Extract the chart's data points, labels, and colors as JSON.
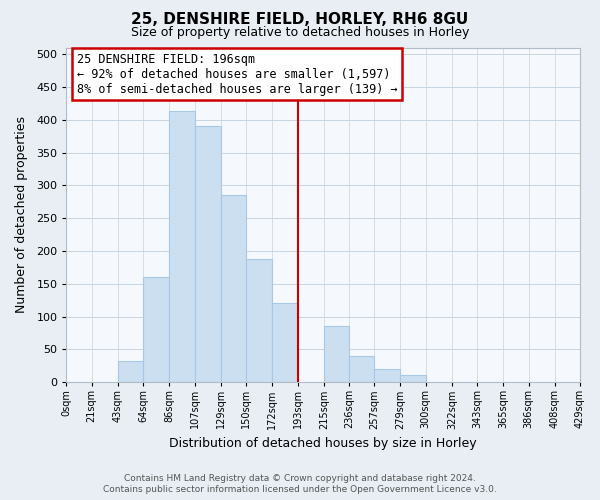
{
  "title": "25, DENSHIRE FIELD, HORLEY, RH6 8GU",
  "subtitle": "Size of property relative to detached houses in Horley",
  "xlabel": "Distribution of detached houses by size in Horley",
  "ylabel": "Number of detached properties",
  "bin_edges": [
    0,
    21,
    43,
    64,
    86,
    107,
    129,
    150,
    172,
    193,
    215,
    236,
    257,
    279,
    300,
    322,
    343,
    365,
    386,
    408,
    429
  ],
  "bar_heights": [
    0,
    0,
    33,
    160,
    413,
    390,
    285,
    188,
    120,
    0,
    85,
    40,
    20,
    11,
    0,
    0,
    0,
    0,
    0,
    0
  ],
  "bar_color": "#ccdff0",
  "bar_edgecolor": "#a8c8e8",
  "vline_x": 193,
  "vline_color": "#cc0000",
  "ylim": [
    0,
    510
  ],
  "yticks": [
    0,
    50,
    100,
    150,
    200,
    250,
    300,
    350,
    400,
    450,
    500
  ],
  "tick_labels": [
    "0sqm",
    "21sqm",
    "43sqm",
    "64sqm",
    "86sqm",
    "107sqm",
    "129sqm",
    "150sqm",
    "172sqm",
    "193sqm",
    "215sqm",
    "236sqm",
    "257sqm",
    "279sqm",
    "300sqm",
    "322sqm",
    "343sqm",
    "365sqm",
    "386sqm",
    "408sqm",
    "429sqm"
  ],
  "annotation_title": "25 DENSHIRE FIELD: 196sqm",
  "annotation_line1": "← 92% of detached houses are smaller (1,597)",
  "annotation_line2": "8% of semi-detached houses are larger (139) →",
  "annotation_box_color": "#ffffff",
  "annotation_box_edgecolor": "#cc0000",
  "footer_line1": "Contains HM Land Registry data © Crown copyright and database right 2024.",
  "footer_line2": "Contains public sector information licensed under the Open Government Licence v3.0.",
  "bg_color": "#e8eef4",
  "plot_bg_color": "#f5f8fc",
  "grid_color": "#c8d4e0"
}
